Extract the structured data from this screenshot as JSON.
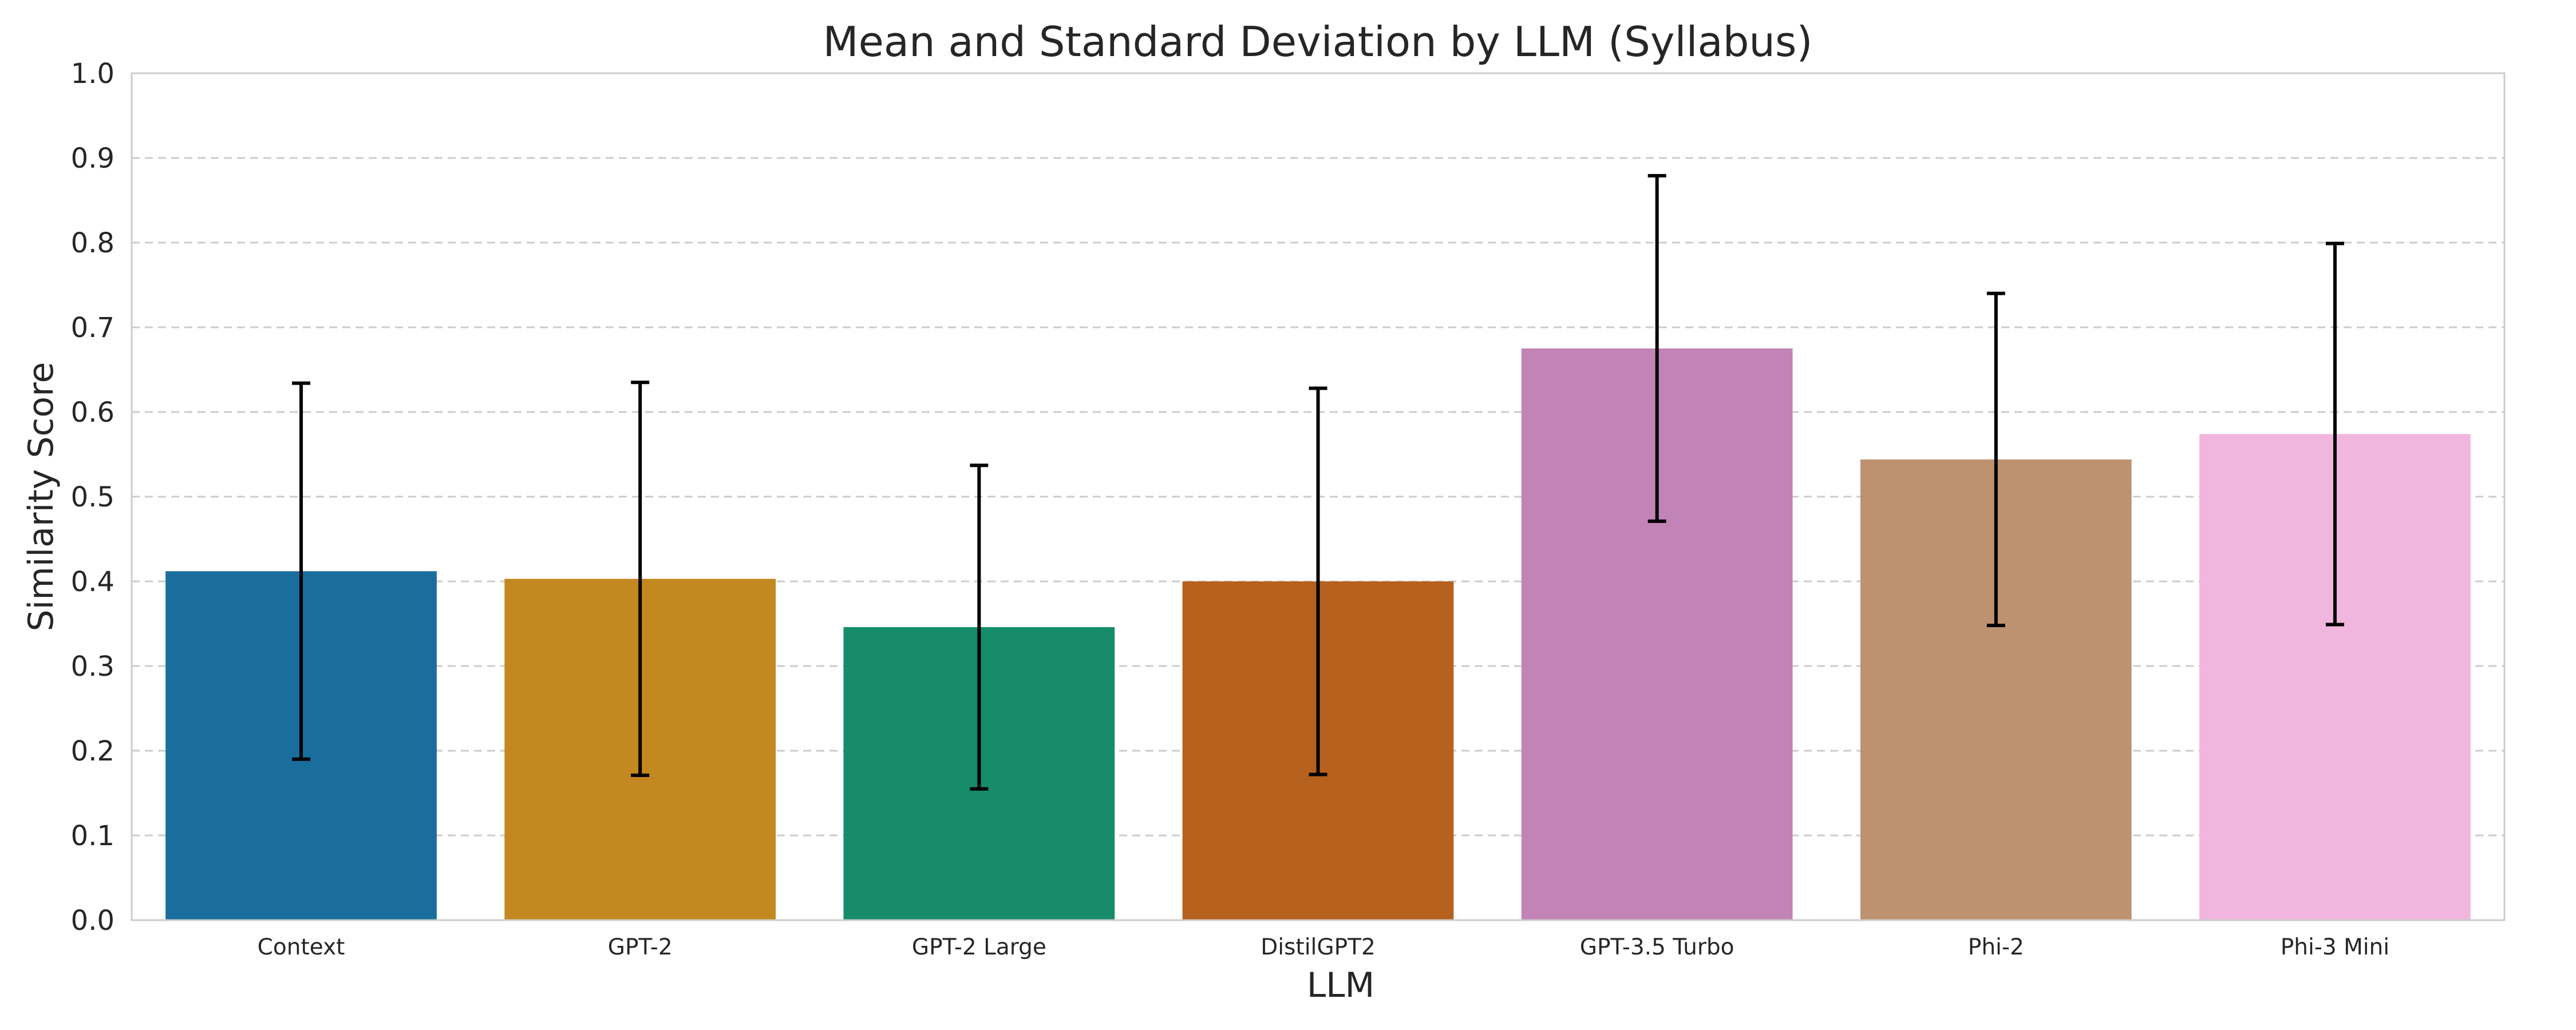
{
  "chart_data": {
    "type": "bar",
    "title": "Mean and Standard Deviation by LLM (Syllabus)",
    "xlabel": "LLM",
    "ylabel": "Similarity Score",
    "ylim": [
      0,
      1.0
    ],
    "yticks": [
      "0.0",
      "0.1",
      "0.2",
      "0.3",
      "0.4",
      "0.5",
      "0.6",
      "0.7",
      "0.8",
      "0.9",
      "1.0"
    ],
    "grid": true,
    "categories": [
      "Context",
      "GPT-2",
      "GPT-2 Large",
      "DistilGPT2",
      "GPT-3.5 Turbo",
      "Phi-2",
      "Phi-3 Mini"
    ],
    "values": [
      0.412,
      0.403,
      0.346,
      0.4,
      0.675,
      0.544,
      0.574
    ],
    "std": [
      0.222,
      0.232,
      0.191,
      0.228,
      0.204,
      0.196,
      0.225
    ],
    "colors": [
      "#1a6e9e",
      "#c38820",
      "#178c6a",
      "#b7611e",
      "#c283b6",
      "#be9270",
      "#f1b6dd"
    ]
  }
}
